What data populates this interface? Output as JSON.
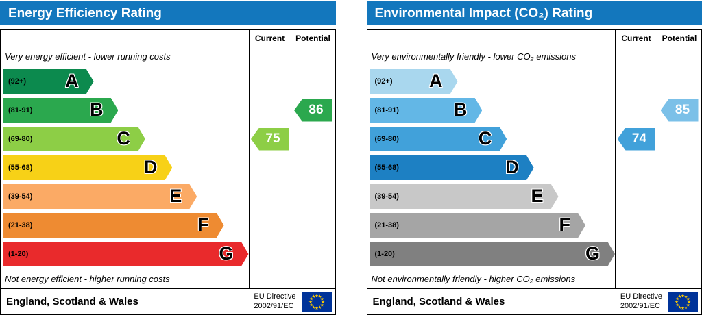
{
  "accent": {
    "header_bg": "#1377bd",
    "header_text": "#ffffff",
    "border": "#000000",
    "eu_flag_bg": "#003399",
    "eu_flag_star": "#ffcc00"
  },
  "chart_data": [
    {
      "type": "bar",
      "orientation": "horizontal",
      "title": "Energy Efficiency Rating",
      "columns": {
        "current": "Current",
        "potential": "Potential"
      },
      "top_note": "Very energy efficient - lower running costs",
      "bottom_note": "Not energy efficient - higher running costs",
      "bands": [
        {
          "grade": "A",
          "range": "(92+)",
          "color": "#0c8a4e",
          "width_pct": 37
        },
        {
          "grade": "B",
          "range": "(81-91)",
          "color": "#2ba84e",
          "width_pct": 47
        },
        {
          "grade": "C",
          "range": "(69-80)",
          "color": "#8dce46",
          "width_pct": 58
        },
        {
          "grade": "D",
          "range": "(55-68)",
          "color": "#f7d117",
          "width_pct": 69
        },
        {
          "grade": "E",
          "range": "(39-54)",
          "color": "#fbaa65",
          "width_pct": 79
        },
        {
          "grade": "F",
          "range": "(21-38)",
          "color": "#ee8b32",
          "width_pct": 90
        },
        {
          "grade": "G",
          "range": "(1-20)",
          "color": "#e92a2c",
          "width_pct": 100
        }
      ],
      "current": {
        "value": 75,
        "grade": "C",
        "band_index": 2,
        "color": "#8dce46"
      },
      "potential": {
        "value": 86,
        "grade": "B",
        "band_index": 1,
        "color": "#2ba84e"
      },
      "footer": {
        "region": "England, Scotland & Wales",
        "directive_line1": "EU Directive",
        "directive_line2": "2002/91/EC"
      }
    },
    {
      "type": "bar",
      "orientation": "horizontal",
      "title": "Environmental Impact (CO₂) Rating",
      "columns": {
        "current": "Current",
        "potential": "Potential"
      },
      "top_note": "Very environmentally friendly - lower CO₂ emissions",
      "bottom_note": "Not environmentally friendly - higher CO₂ emissions",
      "bands": [
        {
          "grade": "A",
          "range": "(92+)",
          "color": "#a9d7ee",
          "width_pct": 36
        },
        {
          "grade": "B",
          "range": "(81-91)",
          "color": "#63b7e6",
          "width_pct": 46
        },
        {
          "grade": "C",
          "range": "(69-80)",
          "color": "#41a1da",
          "width_pct": 56
        },
        {
          "grade": "D",
          "range": "(55-68)",
          "color": "#1d80c3",
          "width_pct": 67
        },
        {
          "grade": "E",
          "range": "(39-54)",
          "color": "#c8c8c8",
          "width_pct": 77
        },
        {
          "grade": "F",
          "range": "(21-38)",
          "color": "#a5a5a5",
          "width_pct": 88
        },
        {
          "grade": "G",
          "range": "(1-20)",
          "color": "#808080",
          "width_pct": 100
        }
      ],
      "current": {
        "value": 74,
        "grade": "C",
        "band_index": 2,
        "color": "#41a1da"
      },
      "potential": {
        "value": 85,
        "grade": "B",
        "band_index": 1,
        "color": "#7bc0e8"
      },
      "footer": {
        "region": "England, Scotland & Wales",
        "directive_line1": "EU Directive",
        "directive_line2": "2002/91/EC"
      }
    }
  ]
}
